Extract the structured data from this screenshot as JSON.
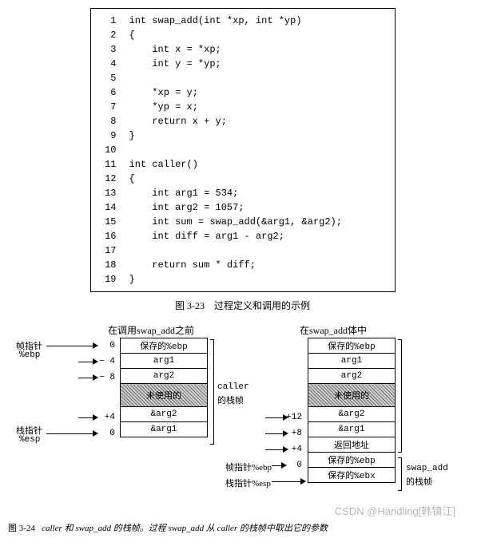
{
  "code": {
    "lines": [
      {
        "n": "1",
        "t": "int swap_add(int *xp, int *yp)"
      },
      {
        "n": "2",
        "t": "{"
      },
      {
        "n": "3",
        "t": "    int x = *xp;"
      },
      {
        "n": "4",
        "t": "    int y = *yp;"
      },
      {
        "n": "5",
        "t": ""
      },
      {
        "n": "6",
        "t": "    *xp = y;"
      },
      {
        "n": "7",
        "t": "    *yp = x;"
      },
      {
        "n": "8",
        "t": "    return x + y;"
      },
      {
        "n": "9",
        "t": "}"
      },
      {
        "n": "10",
        "t": ""
      },
      {
        "n": "11",
        "t": "int caller()"
      },
      {
        "n": "12",
        "t": "{"
      },
      {
        "n": "13",
        "t": "    int arg1 = 534;"
      },
      {
        "n": "14",
        "t": "    int arg2 = 1057;"
      },
      {
        "n": "15",
        "t": "    int sum = swap_add(&arg1, &arg2);"
      },
      {
        "n": "16",
        "t": "    int diff = arg1 - arg2;"
      },
      {
        "n": "17",
        "t": ""
      },
      {
        "n": "18",
        "t": "    return sum * diff;"
      },
      {
        "n": "19",
        "t": "}"
      }
    ]
  },
  "caption1_label": "图 3-23",
  "caption1_text": "过程定义和调用的示例",
  "diagram": {
    "left_title": "在调用swap_add之前",
    "right_title": "在swap_add体中",
    "left_stack": [
      "保存的%ebp",
      "arg1",
      "arg2",
      "未使用的",
      "&arg2",
      "&arg1"
    ],
    "left_offsets": [
      "0",
      "− 4",
      "− 8",
      "+4",
      "0"
    ],
    "right_stack": [
      "保存的%ebp",
      "arg1",
      "arg2",
      "未使用的",
      "&arg2",
      "&arg1",
      "返回地址",
      "保存的%ebp",
      "保存的%ebx"
    ],
    "right_offsets": [
      "+12",
      "+8",
      "+4",
      "0"
    ],
    "labels": {
      "frame_ptr": "帧指针",
      "stack_ptr": "栈指针",
      "reg_ebp": "%ebp",
      "reg_esp": "%esp",
      "caller_frame": "caller",
      "caller_frame2": "的栈帧",
      "swap_frame": "swap_add",
      "swap_frame2": "的栈帧",
      "fp_ebp": "帧指针%ebp",
      "sp_esp": "栈指针%esp"
    }
  },
  "caption2_label": "图 3-24",
  "caption2_text": "caller 和 swap_add 的栈帧。过程 swap_add 从 caller 的栈帧中取出它的参数",
  "watermark": "CSDN @Handling[韩镇江]"
}
